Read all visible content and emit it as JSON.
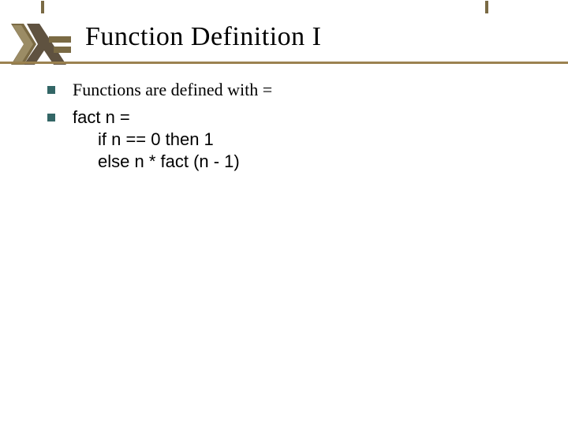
{
  "title": "Function Definition I",
  "colors": {
    "title_text": "#000000",
    "divider": "#9b8250",
    "bullet": "#336666",
    "text": "#000000",
    "code_text": "#000000",
    "tick": "#7a6a44",
    "logo_lambda": "#5f5240",
    "logo_body": "#7a6a44",
    "logo_highlight": "#d9cba3"
  },
  "top_ticks": [
    52,
    615
  ],
  "bullets": [
    {
      "text": "Functions are defined with =",
      "type": "text"
    },
    {
      "text": "fact n =",
      "type": "code",
      "lines_after": [
        "if n == 0 then 1",
        "else n * fact (n - 1)"
      ]
    }
  ]
}
